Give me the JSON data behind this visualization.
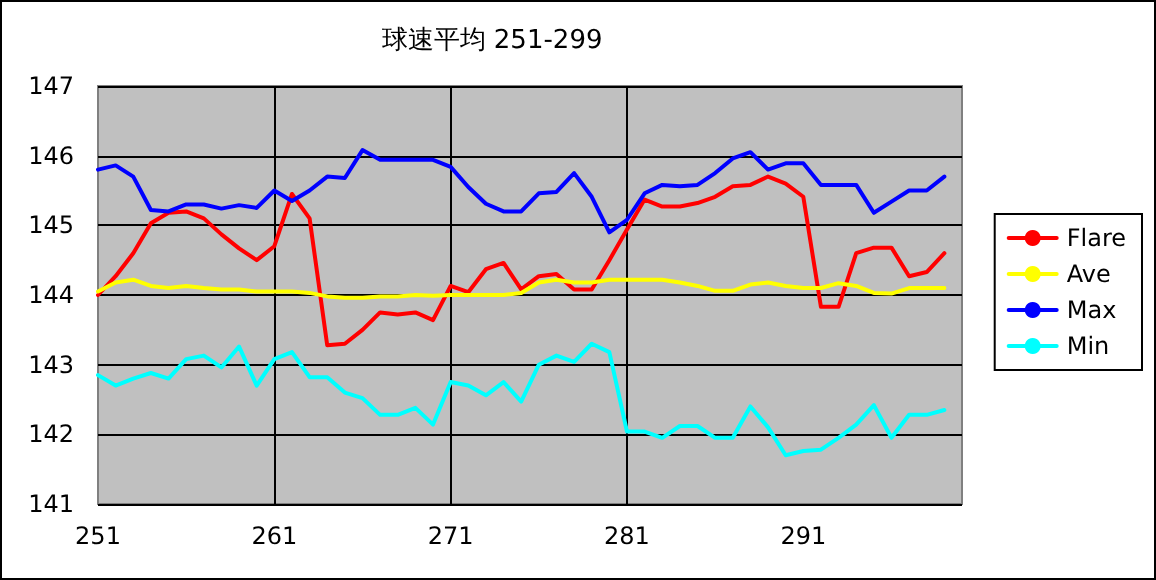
{
  "chart_data": {
    "type": "line",
    "title": "球速平均 251-299",
    "x": [
      251,
      252,
      253,
      254,
      255,
      256,
      257,
      258,
      259,
      260,
      261,
      262,
      263,
      264,
      265,
      266,
      267,
      268,
      269,
      270,
      271,
      272,
      273,
      274,
      275,
      276,
      277,
      278,
      279,
      280,
      281,
      282,
      283,
      284,
      285,
      286,
      287,
      288,
      289,
      290,
      291,
      292,
      293,
      294,
      295,
      296,
      297,
      298,
      299
    ],
    "series": [
      {
        "name": "Flare",
        "color": "#ff0000",
        "values": [
          144.0,
          144.27,
          144.6,
          145.03,
          145.18,
          145.2,
          145.1,
          144.87,
          144.67,
          144.5,
          144.7,
          145.45,
          145.1,
          143.28,
          143.3,
          143.5,
          143.75,
          143.72,
          143.75,
          143.64,
          144.13,
          144.04,
          144.37,
          144.46,
          144.08,
          144.27,
          144.3,
          144.08,
          144.08,
          144.5,
          144.94,
          145.37,
          145.27,
          145.27,
          145.32,
          145.41,
          145.56,
          145.58,
          145.7,
          145.6,
          145.41,
          143.83,
          143.83,
          144.6,
          144.68,
          144.68,
          144.27,
          144.33,
          144.6
        ]
      },
      {
        "name": "Ave",
        "color": "#ffff00",
        "values": [
          144.05,
          144.18,
          144.22,
          144.13,
          144.1,
          144.13,
          144.1,
          144.08,
          144.08,
          144.05,
          144.05,
          144.05,
          144.03,
          143.98,
          143.96,
          143.96,
          143.98,
          143.98,
          144.0,
          143.99,
          144.0,
          144.0,
          144.0,
          144.0,
          144.03,
          144.18,
          144.22,
          144.18,
          144.18,
          144.22,
          144.22,
          144.22,
          144.22,
          144.18,
          144.13,
          144.06,
          144.06,
          144.15,
          144.18,
          144.13,
          144.1,
          144.1,
          144.17,
          144.13,
          144.03,
          144.02,
          144.1,
          144.1,
          144.1
        ]
      },
      {
        "name": "Max",
        "color": "#0000ff",
        "values": [
          145.8,
          145.86,
          145.7,
          145.22,
          145.2,
          145.3,
          145.3,
          145.24,
          145.29,
          145.25,
          145.5,
          145.35,
          145.5,
          145.7,
          145.68,
          146.08,
          145.94,
          145.94,
          145.94,
          145.94,
          145.84,
          145.55,
          145.31,
          145.2,
          145.2,
          145.46,
          145.48,
          145.75,
          145.41,
          144.9,
          145.08,
          145.46,
          145.58,
          145.56,
          145.58,
          145.75,
          145.96,
          146.05,
          145.8,
          145.89,
          145.89,
          145.58,
          145.58,
          145.58,
          145.18,
          145.34,
          145.5,
          145.5,
          145.7
        ]
      },
      {
        "name": "Min",
        "color": "#00ffff",
        "values": [
          142.85,
          142.7,
          142.8,
          142.88,
          142.8,
          143.08,
          143.13,
          142.96,
          143.26,
          142.7,
          143.08,
          143.18,
          142.82,
          142.82,
          142.6,
          142.52,
          142.28,
          142.28,
          142.38,
          142.14,
          142.75,
          142.7,
          142.56,
          142.75,
          142.47,
          143.0,
          143.13,
          143.04,
          143.3,
          143.18,
          142.04,
          142.04,
          141.95,
          142.12,
          142.12,
          141.95,
          141.95,
          142.4,
          142.1,
          141.7,
          141.76,
          141.78,
          141.95,
          142.14,
          142.42,
          141.95,
          142.28,
          142.28,
          142.35
        ]
      }
    ],
    "xlim": [
      251,
      300
    ],
    "xticks": [
      251,
      261,
      271,
      281,
      291
    ],
    "ylim": [
      141,
      147
    ],
    "yticks": [
      141,
      142,
      143,
      144,
      145,
      146,
      147
    ],
    "grid": true,
    "legend": "right",
    "marker": "none",
    "line_style": "solid"
  }
}
